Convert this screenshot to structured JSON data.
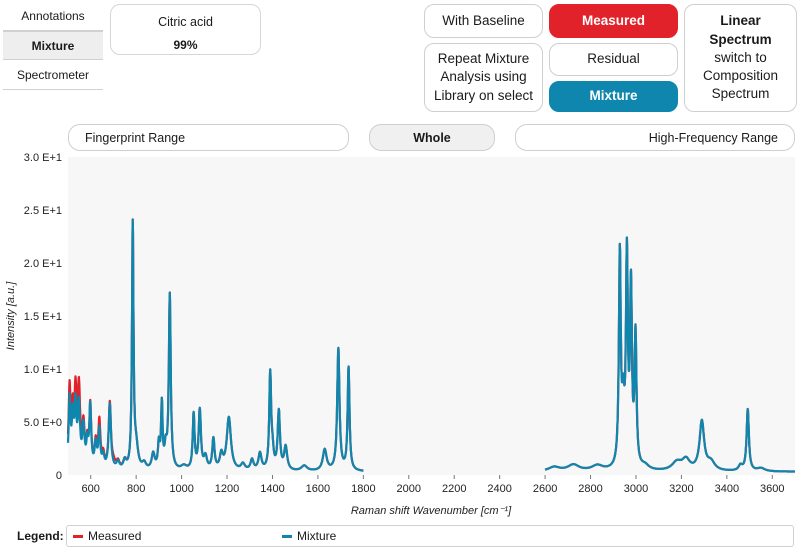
{
  "side_tabs": [
    {
      "label": "Annotations",
      "active": false
    },
    {
      "label": "Mixture",
      "active": true
    },
    {
      "label": "Spectrometer",
      "active": false
    }
  ],
  "component_card": {
    "name": "Citric acid",
    "value": "99%"
  },
  "buttons": {
    "with_baseline": "With Baseline",
    "measured": "Measured",
    "repeat": "Repeat Mixture Analysis using Library on select",
    "residual": "Residual",
    "mixture": "Mixture",
    "linear_bold": "Linear Spectrum",
    "linear_rest": "switch to Composition Spectrum"
  },
  "colors": {
    "measured": "#e1222a",
    "mixture": "#0e86ad",
    "plot_bg": "#f7f7f7"
  },
  "ranges": {
    "fingerprint": "Fingerprint Range",
    "whole": "Whole",
    "high_freq": "High-Frequency Range"
  },
  "legend": {
    "title": "Legend:",
    "measured": "Measured",
    "mixture": "Mixture"
  },
  "chart_data": {
    "type": "line",
    "xlabel": "Raman shift Wavenumber [cm⁻¹]",
    "ylabel": "Intensity [a.u.]",
    "xlim": [
      500,
      3700
    ],
    "ylim": [
      0,
      30
    ],
    "xticks": [
      600,
      800,
      1000,
      1200,
      1400,
      1600,
      1800,
      2000,
      2200,
      2400,
      2600,
      2800,
      3000,
      3200,
      3400,
      3600
    ],
    "yticks": [
      {
        "value": 0,
        "label": "0"
      },
      {
        "value": 5,
        "label": "5.0 E+0"
      },
      {
        "value": 10,
        "label": "1.0 E+1"
      },
      {
        "value": 15,
        "label": "1.5 E+1"
      },
      {
        "value": 20,
        "label": "2.0 E+1"
      },
      {
        "value": 25,
        "label": "2.5 E+1"
      },
      {
        "value": 30,
        "label": "3.0 E+1"
      }
    ],
    "segments": [
      [
        500,
        1800
      ],
      [
        2600,
        3700
      ]
    ],
    "baseline": 0.3,
    "peaks": [
      {
        "x": 507,
        "h": 6.5,
        "w": 5
      },
      {
        "x": 521,
        "h": 4.5,
        "w": 5
      },
      {
        "x": 533,
        "h": 5.5,
        "w": 5
      },
      {
        "x": 548,
        "h": 5.8,
        "w": 6
      },
      {
        "x": 568,
        "h": 3.8,
        "w": 6
      },
      {
        "x": 585,
        "h": 2.2,
        "w": 5
      },
      {
        "x": 598,
        "h": 5.8,
        "w": 5
      },
      {
        "x": 622,
        "h": 2.3,
        "w": 6
      },
      {
        "x": 638,
        "h": 3.6,
        "w": 5
      },
      {
        "x": 655,
        "h": 1.2,
        "w": 6
      },
      {
        "x": 684,
        "h": 6.2,
        "w": 6
      },
      {
        "x": 720,
        "h": 0.7,
        "w": 8
      },
      {
        "x": 750,
        "h": 0.8,
        "w": 8
      },
      {
        "x": 785,
        "h": 23.0,
        "w": 4
      },
      {
        "x": 800,
        "h": 2.0,
        "w": 10
      },
      {
        "x": 835,
        "h": 0.6,
        "w": 10
      },
      {
        "x": 875,
        "h": 1.5,
        "w": 8
      },
      {
        "x": 900,
        "h": 2.3,
        "w": 5
      },
      {
        "x": 913,
        "h": 6.0,
        "w": 4
      },
      {
        "x": 930,
        "h": 1.8,
        "w": 6
      },
      {
        "x": 948,
        "h": 16.5,
        "w": 5
      },
      {
        "x": 1010,
        "h": 0.4,
        "w": 15
      },
      {
        "x": 1053,
        "h": 5.2,
        "w": 5
      },
      {
        "x": 1080,
        "h": 5.6,
        "w": 6
      },
      {
        "x": 1105,
        "h": 1.2,
        "w": 8
      },
      {
        "x": 1140,
        "h": 2.9,
        "w": 6
      },
      {
        "x": 1175,
        "h": 1.4,
        "w": 8
      },
      {
        "x": 1208,
        "h": 5.0,
        "w": 11
      },
      {
        "x": 1270,
        "h": 0.6,
        "w": 10
      },
      {
        "x": 1310,
        "h": 1.0,
        "w": 8
      },
      {
        "x": 1345,
        "h": 1.6,
        "w": 8
      },
      {
        "x": 1390,
        "h": 9.0,
        "w": 5
      },
      {
        "x": 1400,
        "h": 1.5,
        "w": 6
      },
      {
        "x": 1428,
        "h": 5.5,
        "w": 6
      },
      {
        "x": 1458,
        "h": 2.2,
        "w": 8
      },
      {
        "x": 1540,
        "h": 0.5,
        "w": 15
      },
      {
        "x": 1630,
        "h": 2.0,
        "w": 10
      },
      {
        "x": 1690,
        "h": 11.5,
        "w": 6
      },
      {
        "x": 1735,
        "h": 9.7,
        "w": 5
      },
      {
        "x": 2640,
        "h": 0.4,
        "w": 30
      },
      {
        "x": 2725,
        "h": 0.6,
        "w": 30
      },
      {
        "x": 2830,
        "h": 0.5,
        "w": 30
      },
      {
        "x": 2929,
        "h": 20.0,
        "w": 5
      },
      {
        "x": 2944,
        "h": 5.0,
        "w": 6
      },
      {
        "x": 2960,
        "h": 19.5,
        "w": 5
      },
      {
        "x": 2978,
        "h": 16.5,
        "w": 5
      },
      {
        "x": 2998,
        "h": 12.3,
        "w": 5
      },
      {
        "x": 3040,
        "h": 0.4,
        "w": 20
      },
      {
        "x": 3180,
        "h": 0.8,
        "w": 25
      },
      {
        "x": 3220,
        "h": 1.0,
        "w": 20
      },
      {
        "x": 3290,
        "h": 4.6,
        "w": 12
      },
      {
        "x": 3330,
        "h": 0.8,
        "w": 20
      },
      {
        "x": 3460,
        "h": 0.5,
        "w": 10
      },
      {
        "x": 3492,
        "h": 5.8,
        "w": 6
      },
      {
        "x": 3550,
        "h": 0.3,
        "w": 20
      }
    ],
    "measured_offsets": [
      {
        "x": 507,
        "dh": 1.0
      },
      {
        "x": 533,
        "dh": 1.0
      },
      {
        "x": 548,
        "dh": 1.5
      },
      {
        "x": 638,
        "dh": 0.8
      },
      {
        "x": 700,
        "dh": 0.5
      },
      {
        "x": 1700,
        "dh": 0.0
      }
    ]
  }
}
